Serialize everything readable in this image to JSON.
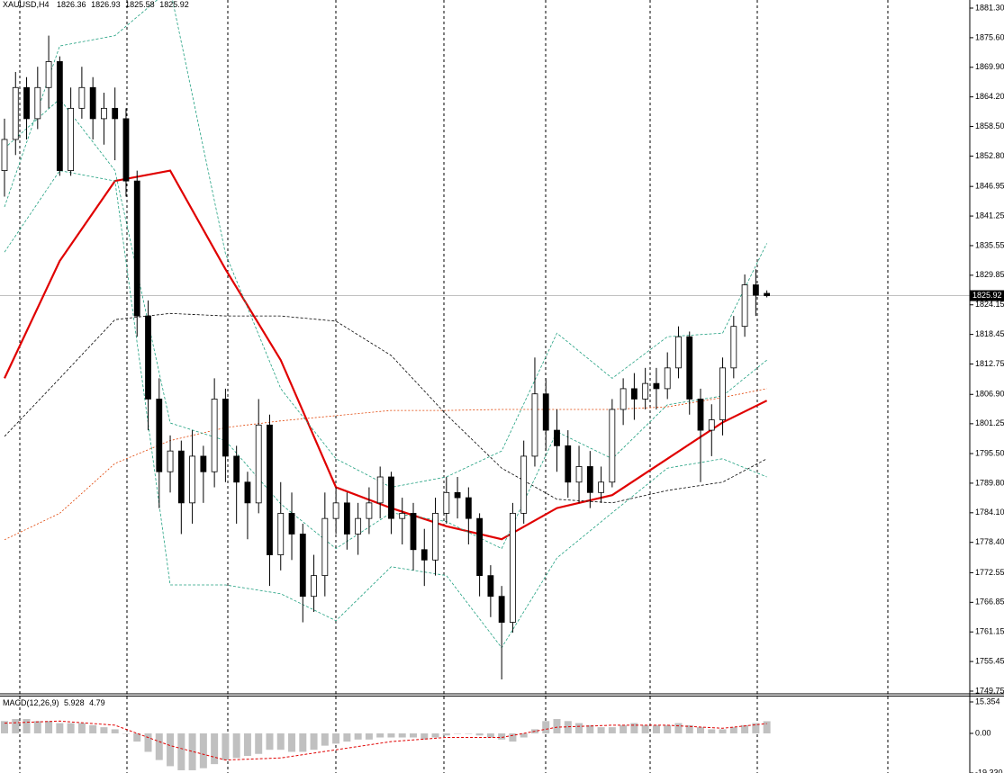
{
  "chart_data": [
    {
      "type": "candlestick",
      "title": "XAUUSD,H4",
      "open": [
        1850,
        1856,
        1866,
        1860,
        1866,
        1871,
        1850,
        1862,
        1866,
        1860,
        1862,
        1860,
        1848,
        1822,
        1806,
        1792,
        1796,
        1786,
        1795,
        1792,
        1806,
        1795,
        1790,
        1786,
        1801,
        1776,
        1784,
        1780,
        1768,
        1772,
        1783,
        1786,
        1780,
        1783,
        1786,
        1791,
        1783,
        1784,
        1777,
        1775,
        1784,
        1788,
        1787,
        1783,
        1772,
        1768,
        1763,
        1784,
        1795,
        1807,
        1800,
        1797,
        1790,
        1793,
        1788,
        1790,
        1804,
        1808,
        1806,
        1809,
        1808,
        1812,
        1818,
        1806,
        1800,
        1802,
        1812,
        1820,
        1828,
        1826.36
      ],
      "high": [
        1860,
        1869,
        1868,
        1870,
        1876,
        1872,
        1866,
        1870,
        1868,
        1865,
        1866,
        1862,
        1850,
        1825,
        1810,
        1799,
        1798,
        1800,
        1797,
        1810,
        1808,
        1797,
        1792,
        1806,
        1803,
        1790,
        1788,
        1782,
        1776,
        1788,
        1789,
        1788,
        1786,
        1789,
        1793,
        1792,
        1787,
        1786,
        1781,
        1787,
        1791,
        1791,
        1789,
        1784,
        1774,
        1770,
        1786,
        1798,
        1814,
        1810,
        1804,
        1800,
        1797,
        1796,
        1793,
        1806,
        1810,
        1811,
        1812,
        1812,
        1815,
        1820,
        1819,
        1808,
        1805,
        1814,
        1822,
        1830,
        1831,
        1826.93
      ],
      "low": [
        1845,
        1853,
        1856,
        1858,
        1862,
        1849,
        1849,
        1860,
        1856,
        1855,
        1852,
        1845,
        1818,
        1800,
        1785,
        1788,
        1780,
        1782,
        1786,
        1789,
        1790,
        1782,
        1779,
        1784,
        1770,
        1773,
        1775,
        1763,
        1765,
        1768,
        1780,
        1777,
        1776,
        1780,
        1783,
        1780,
        1778,
        1773,
        1770,
        1772,
        1782,
        1783,
        1778,
        1768,
        1764,
        1752,
        1761,
        1782,
        1793,
        1796,
        1792,
        1787,
        1786,
        1785,
        1786,
        1789,
        1801,
        1802,
        1804,
        1804,
        1806,
        1810,
        1803,
        1790,
        1795,
        1799,
        1810,
        1818,
        1822,
        1825.58
      ],
      "close": [
        1856,
        1866,
        1860,
        1866,
        1871,
        1850,
        1862,
        1866,
        1860,
        1862,
        1860,
        1848,
        1822,
        1806,
        1792,
        1796,
        1786,
        1795,
        1792,
        1806,
        1795,
        1790,
        1786,
        1801,
        1776,
        1784,
        1780,
        1768,
        1772,
        1783,
        1786,
        1780,
        1783,
        1786,
        1791,
        1783,
        1784,
        1777,
        1775,
        1784,
        1788,
        1787,
        1783,
        1772,
        1768,
        1763,
        1784,
        1795,
        1807,
        1800,
        1797,
        1790,
        1793,
        1788,
        1790,
        1804,
        1808,
        1806,
        1809,
        1808,
        1812,
        1818,
        1806,
        1800,
        1802,
        1812,
        1820,
        1828,
        1826,
        1825.92
      ],
      "up_color": "#ffffff",
      "down_color": "#000000",
      "wick_color": "#000000",
      "series": [
        {
          "color": "#e00000",
          "width": 2.2,
          "dash": "none",
          "x": [
            0,
            5,
            10,
            15,
            20,
            25,
            30,
            35,
            40,
            45,
            50,
            55,
            60,
            65,
            69
          ],
          "values": [
            1810,
            1832.6,
            1848,
            1850,
            1831,
            1813.5,
            1789,
            1785,
            1781.5,
            1779,
            1785,
            1787.5,
            1794.5,
            1801.5,
            1805.7
          ]
        },
        {
          "color": "#000000",
          "width": 0.8,
          "dash": "3,2",
          "x": [
            0,
            5,
            10,
            15,
            20,
            25,
            30,
            35,
            40,
            45,
            50,
            55,
            60,
            65,
            69
          ],
          "values": [
            1798.8,
            1810,
            1821.3,
            1822.5,
            1822,
            1822,
            1821,
            1814.4,
            1803,
            1792.7,
            1786.7,
            1786,
            1788.4,
            1790,
            1794.5
          ]
        },
        {
          "color": "#e04000",
          "width": 0.8,
          "dash": "2,2",
          "x": [
            0,
            5,
            10,
            15,
            20,
            25,
            30,
            35,
            40,
            45,
            50,
            55,
            60,
            65,
            69
          ],
          "values": [
            1778.9,
            1784,
            1793.6,
            1798,
            1800.5,
            1801.8,
            1802.8,
            1803.8,
            1803.8,
            1804,
            1804,
            1804,
            1804.5,
            1806.3,
            1808
          ]
        },
        {
          "color": "#20a080",
          "width": 0.8,
          "dash": "3,2",
          "x": [
            0,
            5,
            10,
            15,
            20,
            25,
            30,
            35,
            40,
            45,
            50,
            55,
            60,
            65,
            69
          ],
          "values": [
            1843,
            1874,
            1876,
            1885,
            1834,
            1808,
            1794.5,
            1789,
            1791,
            1796,
            1818.7,
            1810,
            1818,
            1818.7,
            1836
          ]
        },
        {
          "color": "#20a080",
          "width": 0.8,
          "dash": "3,2",
          "x": [
            0,
            5,
            10,
            15,
            20,
            25,
            30,
            35,
            40,
            45,
            50,
            55,
            60,
            65,
            69
          ],
          "values": [
            1854.3,
            1863.8,
            1850,
            1801.4,
            1798,
            1785.8,
            1777.2,
            1784.1,
            1782.4,
            1777.2,
            1799.7,
            1794.5,
            1804.9,
            1806.6,
            1813.5
          ]
        },
        {
          "color": "#20a080",
          "width": 0.8,
          "dash": "3,2",
          "x": [
            0,
            5,
            10,
            15,
            20,
            25,
            30,
            35,
            40,
            45,
            50,
            55,
            60,
            65,
            69
          ],
          "values": [
            1834.3,
            1850,
            1848,
            1770.2,
            1770.2,
            1768.5,
            1763.3,
            1773.7,
            1772,
            1758.1,
            1775.4,
            1784.1,
            1792.7,
            1794.5,
            1791
          ]
        }
      ],
      "ylim": [
        1749.75,
        1881.3
      ],
      "yticks": [
        {
          "value": 1881.3,
          "label": "1881.30"
        },
        {
          "value": 1875.6,
          "label": "1875.60"
        },
        {
          "value": 1869.9,
          "label": "1869.90"
        },
        {
          "value": 1864.2,
          "label": "1864.20"
        },
        {
          "value": 1858.5,
          "label": "1858.50"
        },
        {
          "value": 1852.8,
          "label": "1852.80"
        },
        1846.95,
        1841.25,
        1835.55,
        1829.85,
        1824.15,
        1818.45,
        1812.75,
        {
          "value": 1806.9,
          "label": "1806.90"
        },
        1801.25,
        {
          "value": 1795.5,
          "label": "1795.50"
        },
        {
          "value": 1789.8,
          "label": "1789.80"
        },
        {
          "value": 1784.1,
          "label": "1784.10"
        },
        {
          "value": 1778.4,
          "label": "1778.40"
        },
        1772.55,
        1766.85,
        1761.15,
        1755.45,
        1749.75
      ]
    },
    {
      "type": "macd",
      "title": "MACD(12,26,9)",
      "values": [
        6,
        7,
        7,
        6,
        6,
        5,
        5,
        5,
        4,
        3,
        2,
        0,
        -4,
        -9,
        -13,
        -16,
        -18,
        -18,
        -17,
        -15,
        -13,
        -12,
        -11,
        -10,
        -8,
        -8,
        -9,
        -9,
        -8,
        -6,
        -5,
        -4,
        -3,
        -3,
        -2,
        -2,
        -2,
        -2,
        -3,
        -2,
        -1,
        0,
        0,
        -1,
        -2,
        -3,
        -4,
        -2,
        2,
        6,
        7,
        6,
        5,
        4,
        3,
        3,
        4,
        5,
        4,
        4,
        4,
        5,
        4,
        3,
        2,
        2,
        3,
        4,
        5,
        5.928
      ],
      "bar_color": "#c0c0c0",
      "signal": {
        "color": "#e00000",
        "x": [
          0,
          5,
          10,
          15,
          20,
          25,
          30,
          35,
          40,
          45,
          50,
          55,
          60,
          65,
          69
        ],
        "values": [
          5,
          6,
          4,
          -6,
          -13,
          -12,
          -8,
          -4,
          -2,
          -2,
          3,
          4,
          4,
          2.5,
          4.79
        ]
      },
      "ylim": [
        -19.33,
        15.354
      ],
      "yticks": [
        15.354,
        {
          "value": 0,
          "label": "0.00"
        },
        {
          "value": -19.33,
          "label": "-19.330"
        }
      ]
    }
  ]
}
